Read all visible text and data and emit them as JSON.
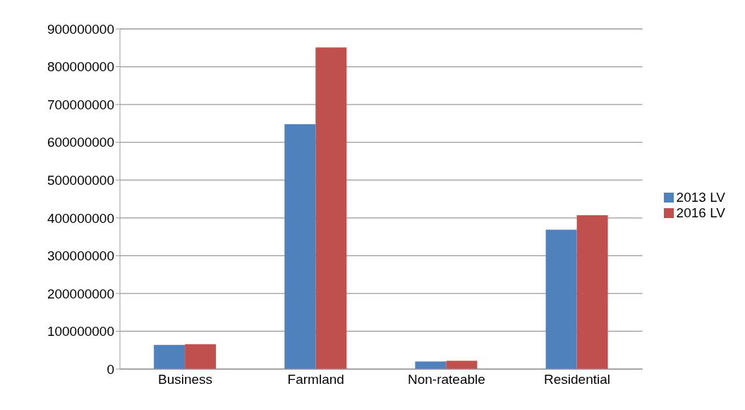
{
  "chart_data": {
    "type": "bar",
    "categories": [
      "Business",
      "Farmland",
      "Non-rateable",
      "Residential"
    ],
    "series": [
      {
        "name": "2013 LV",
        "color": "#4f81bd",
        "values": [
          64000000,
          648000000,
          20000000,
          369000000
        ]
      },
      {
        "name": "2016 LV",
        "color": "#c0504d",
        "values": [
          66000000,
          851000000,
          22000000,
          407000000
        ]
      }
    ],
    "ylim": [
      0,
      900000000
    ],
    "yticks": [
      0,
      100000000,
      200000000,
      300000000,
      400000000,
      500000000,
      600000000,
      700000000,
      800000000,
      900000000
    ],
    "grid": "y",
    "legend": "right"
  }
}
